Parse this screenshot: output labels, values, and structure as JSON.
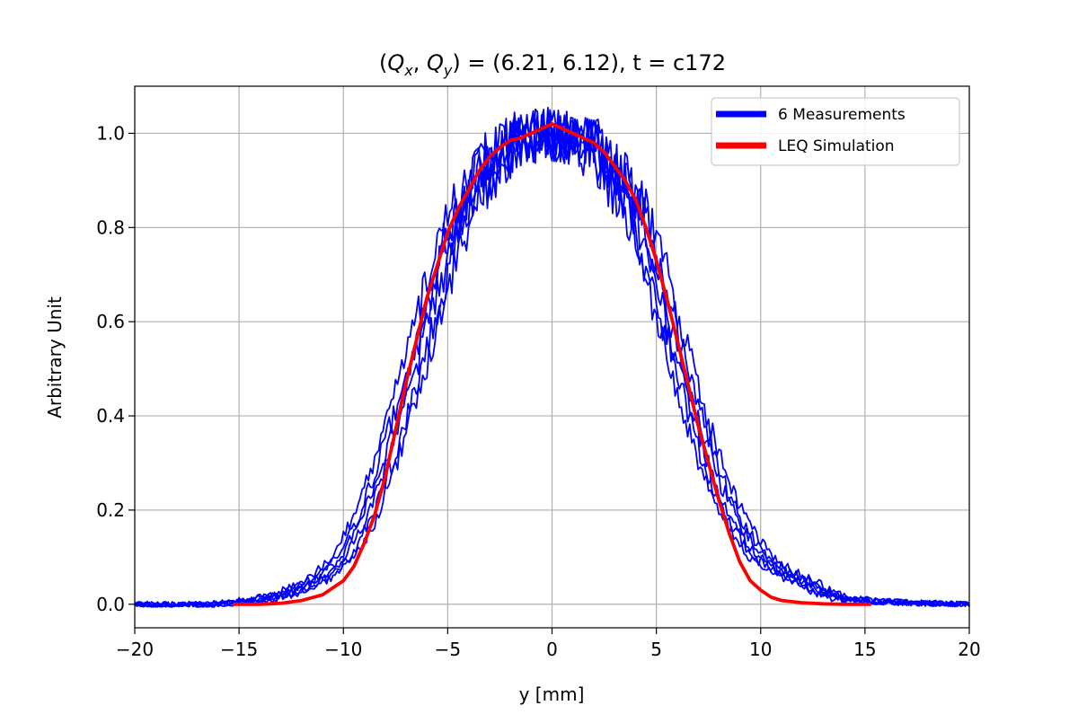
{
  "chart_data": {
    "type": "line",
    "title": {
      "lparen": "(",
      "qx_symbol": "Q",
      "qx_sub": "x",
      "comma": ", ",
      "qy_symbol": "Q",
      "qy_sub": "y",
      "rest": ") = (6.21, 6.12), t = c172"
    },
    "xlabel": "y [mm]",
    "ylabel": "Arbitrary Unit",
    "xlim": [
      -20,
      20
    ],
    "ylim": [
      -0.05,
      1.1
    ],
    "xticks": [
      -20,
      -15,
      -10,
      -5,
      0,
      5,
      10,
      15,
      20
    ],
    "xtick_labels": [
      "−20",
      "−15",
      "−10",
      "−5",
      "0",
      "5",
      "10",
      "15",
      "20"
    ],
    "yticks": [
      0.0,
      0.2,
      0.4,
      0.6,
      0.8,
      1.0
    ],
    "ytick_labels": [
      "0.0",
      "0.2",
      "0.4",
      "0.6",
      "0.8",
      "1.0"
    ],
    "grid": true,
    "legend_position": "top-right",
    "series": [
      {
        "name": "6 Measurements",
        "color": "#0000ff",
        "count": 6,
        "x": [
          -20,
          -18,
          -16,
          -15,
          -14,
          -13,
          -12,
          -11,
          -10,
          -9,
          -8,
          -7,
          -6,
          -5,
          -4,
          -3,
          -2,
          -1,
          0,
          1,
          2,
          3,
          4,
          5,
          6,
          7,
          8,
          9,
          10,
          11,
          12,
          13,
          14,
          15,
          16,
          18,
          20
        ],
        "y": [
          0.0,
          0.0,
          0.0,
          0.005,
          0.01,
          0.02,
          0.035,
          0.06,
          0.1,
          0.18,
          0.3,
          0.44,
          0.6,
          0.75,
          0.86,
          0.93,
          0.97,
          0.99,
          1.0,
          0.99,
          0.97,
          0.92,
          0.83,
          0.7,
          0.54,
          0.38,
          0.25,
          0.16,
          0.1,
          0.07,
          0.05,
          0.025,
          0.012,
          0.008,
          0.005,
          0.002,
          0.0
        ]
      },
      {
        "name": "LEQ Simulation",
        "color": "#ff0000",
        "x": [
          -15.3,
          -14,
          -13,
          -12,
          -11,
          -10,
          -9.5,
          -9,
          -8.5,
          -8,
          -7.5,
          -7,
          -6.5,
          -6,
          -5.5,
          -5,
          -4.5,
          -4,
          -3.5,
          -3,
          -2.5,
          -2,
          -1.5,
          -1,
          -0.5,
          0,
          0.5,
          1,
          1.5,
          2,
          2.5,
          3,
          3.5,
          4,
          4.5,
          5,
          5.5,
          6,
          6.5,
          7,
          7.5,
          8,
          8.5,
          9,
          9.5,
          10,
          10.5,
          11,
          12,
          13,
          14,
          15.3
        ],
        "y": [
          0.0,
          0.0,
          0.002,
          0.008,
          0.02,
          0.05,
          0.08,
          0.13,
          0.19,
          0.27,
          0.37,
          0.47,
          0.56,
          0.65,
          0.72,
          0.79,
          0.84,
          0.88,
          0.92,
          0.95,
          0.97,
          0.985,
          0.99,
          1.0,
          1.01,
          1.02,
          1.01,
          1.0,
          0.99,
          0.98,
          0.96,
          0.93,
          0.9,
          0.86,
          0.8,
          0.73,
          0.65,
          0.56,
          0.47,
          0.38,
          0.3,
          0.22,
          0.15,
          0.09,
          0.05,
          0.03,
          0.015,
          0.008,
          0.003,
          0.001,
          0.0,
          0.0
        ]
      }
    ]
  }
}
